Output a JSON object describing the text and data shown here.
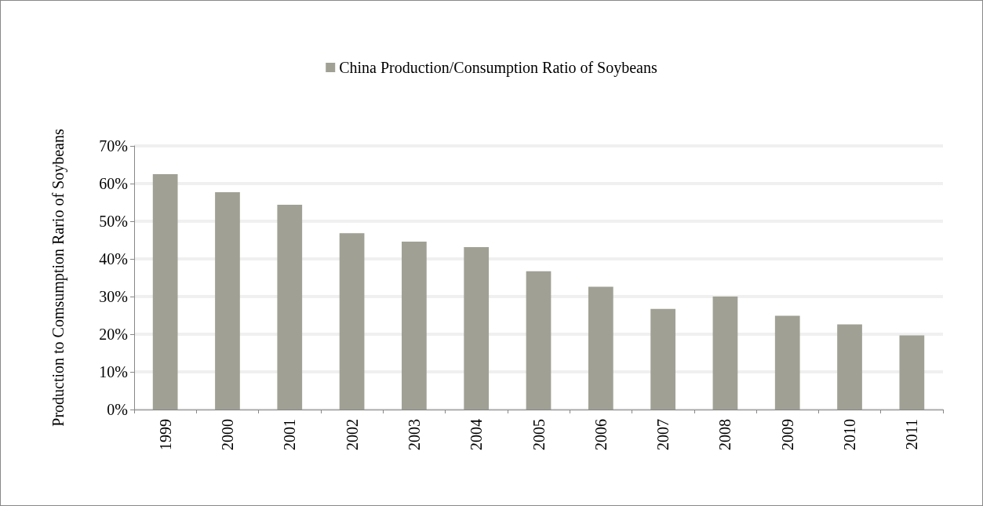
{
  "chart_data": {
    "type": "bar",
    "ylabel": "Production to Comsumption Rario of Soybeans",
    "categories": [
      "1999",
      "2000",
      "2001",
      "2002",
      "2003",
      "2004",
      "2005",
      "2006",
      "2007",
      "2008",
      "2009",
      "2010",
      "2011"
    ],
    "series": [
      {
        "name": "China Production/Consumption Ratio of Soybeans",
        "color": "#a0a094",
        "values": [
          62.5,
          57.7,
          54.4,
          46.8,
          44.6,
          43.1,
          36.7,
          32.6,
          26.7,
          30.0,
          24.9,
          22.6,
          19.7
        ]
      }
    ],
    "ylim": [
      0,
      70
    ],
    "yticks": [
      {
        "value": 0,
        "label": "0%"
      },
      {
        "value": 10,
        "label": "10%"
      },
      {
        "value": 20,
        "label": "20%"
      },
      {
        "value": 30,
        "label": "30%"
      },
      {
        "value": 40,
        "label": "40%"
      },
      {
        "value": 50,
        "label": "50%"
      },
      {
        "value": 60,
        "label": "60%"
      },
      {
        "value": 70,
        "label": "70%"
      }
    ],
    "grid": "y",
    "legend": "top"
  }
}
